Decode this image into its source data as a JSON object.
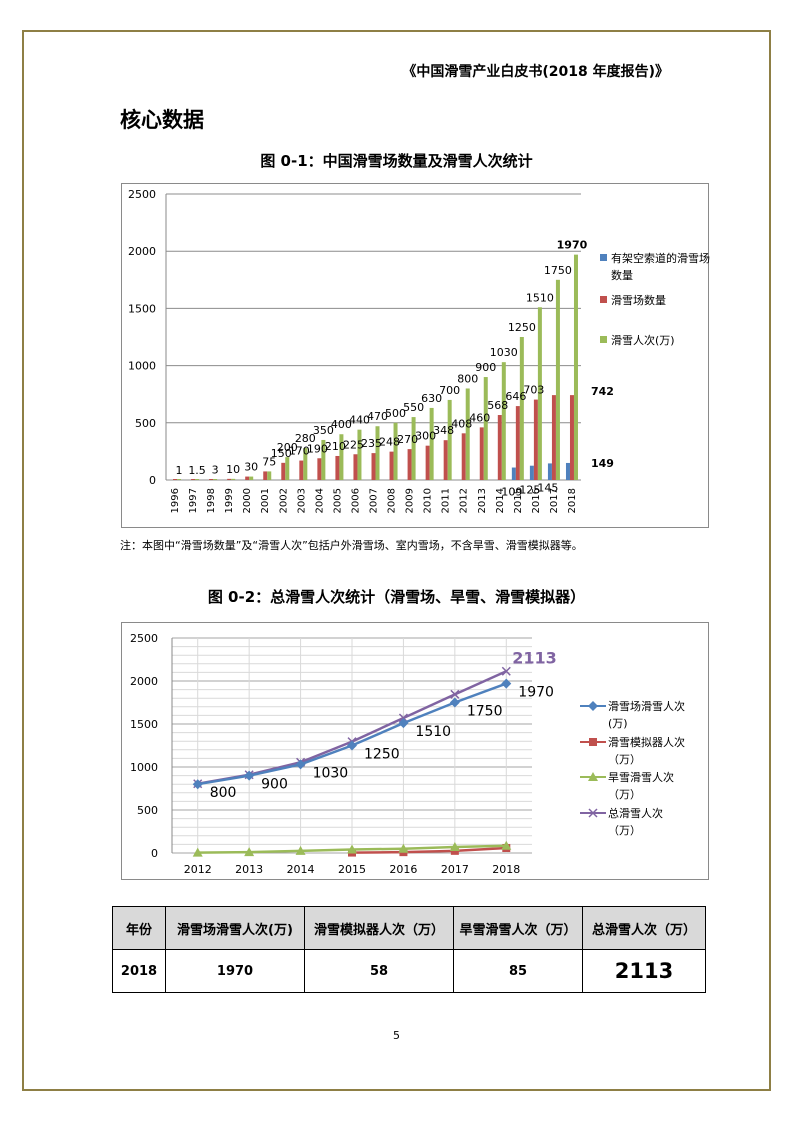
{
  "header": {
    "title": "《中国滑雪产业白皮书(2018 年度报告)》"
  },
  "section": {
    "title": "核心数据"
  },
  "figure1": {
    "title": "图 0-1：中国滑雪场数量及滑雪人次统计",
    "note": "注：本图中“滑雪场数量”及“滑雪人次”包括户外滑雪场、室内雪场，不含旱雪、滑雪模拟器等。"
  },
  "figure2": {
    "title": "图 0-2：总滑雪人次统计（滑雪场、旱雪、滑雪模拟器）"
  },
  "table": {
    "headers": [
      "年份",
      "滑雪场滑雪人次(万)",
      "滑雪模拟器人次（万）",
      "旱雪滑雪人次（万）",
      "总滑雪人次（万）"
    ],
    "row": [
      "2018",
      "1970",
      "58",
      "85",
      "2113"
    ]
  },
  "page_number": "5",
  "colors": {
    "frame": "#8e7f45",
    "bar_blue": "#4f81bd",
    "bar_red": "#c0504d",
    "bar_green": "#9bbb59",
    "line_purple": "#8064a2",
    "table_header_bg": "#d9d9d9"
  },
  "chart_data": [
    {
      "type": "bar",
      "title": "图 0-1：中国滑雪场数量及滑雪人次统计",
      "categories": [
        "1996",
        "1997",
        "1998",
        "1999",
        "2000",
        "2001",
        "2002",
        "2003",
        "2004",
        "2005",
        "2006",
        "2007",
        "2008",
        "2009",
        "2010",
        "2011",
        "2012",
        "2013",
        "2014",
        "2015",
        "2016",
        "2017",
        "2018"
      ],
      "ylim": [
        0,
        2500
      ],
      "yticks": [
        "0",
        "500",
        "1000",
        "1500",
        "2000",
        "2500"
      ],
      "grid": true,
      "legend_position": "right",
      "series": [
        {
          "name": "有架空索道的滑雪场数量",
          "color": "#4f81bd",
          "values": [
            null,
            null,
            null,
            null,
            null,
            null,
            null,
            null,
            null,
            null,
            null,
            null,
            null,
            null,
            null,
            null,
            null,
            null,
            null,
            109,
            125,
            145,
            149
          ],
          "labels": [
            "",
            "",
            "",
            "",
            "",
            "",
            "",
            "",
            "",
            "",
            "",
            "",
            "",
            "",
            "",
            "",
            "",
            "",
            "",
            "109",
            "125",
            "145",
            "149"
          ]
        },
        {
          "name": "滑雪场数量",
          "color": "#c0504d",
          "values": [
            1,
            1.5,
            3,
            10,
            30,
            75,
            150,
            170,
            190,
            210,
            225,
            235,
            248,
            270,
            300,
            348,
            408,
            460,
            568,
            646,
            703,
            742,
            742
          ],
          "labels": [
            "",
            "",
            "",
            "",
            "",
            "",
            "150",
            "170",
            "190",
            "210",
            "225",
            "235",
            "248",
            "270",
            "300",
            "348",
            "408",
            "460",
            "568",
            "646",
            "703",
            "",
            "742"
          ]
        },
        {
          "name": "滑雪人次(万)",
          "color": "#9bbb59",
          "values": [
            1,
            1.5,
            3,
            10,
            30,
            75,
            200,
            280,
            350,
            400,
            440,
            470,
            500,
            550,
            630,
            700,
            800,
            900,
            1030,
            1250,
            1510,
            1750,
            1970
          ],
          "labels": [
            "1",
            "1.5",
            "3",
            "10",
            "30",
            "75",
            "200",
            "280",
            "350",
            "400",
            "440",
            "470",
            "500",
            "550",
            "630",
            "700",
            "800",
            "900",
            "1030",
            "1250",
            "1510",
            "1750",
            "1970"
          ]
        }
      ]
    },
    {
      "type": "line",
      "title": "图 0-2：总滑雪人次统计（滑雪场、旱雪、滑雪模拟器）",
      "x": [
        "2012",
        "2013",
        "2014",
        "2015",
        "2016",
        "2017",
        "2018"
      ],
      "ylim": [
        0,
        2500
      ],
      "yticks": [
        "0",
        "500",
        "1000",
        "1500",
        "2000",
        "2500"
      ],
      "grid": true,
      "legend_position": "right",
      "series": [
        {
          "name": "滑雪场滑雪人次(万)",
          "color": "#4f81bd",
          "marker": "diamond",
          "values": [
            800,
            900,
            1030,
            1250,
            1510,
            1750,
            1970
          ],
          "labels": [
            "800",
            "900",
            "1030",
            "1250",
            "1510",
            "1750",
            "1970"
          ]
        },
        {
          "name": "滑雪模拟器人次（万）",
          "color": "#c0504d",
          "marker": "square",
          "values": [
            null,
            null,
            null,
            5,
            10,
            25,
            58
          ]
        },
        {
          "name": "旱雪滑雪人次（万）",
          "color": "#9bbb59",
          "marker": "triangle",
          "values": [
            5,
            10,
            25,
            40,
            50,
            70,
            85
          ]
        },
        {
          "name": "总滑雪人次（万）",
          "color": "#8064a2",
          "marker": "x",
          "values": [
            805,
            910,
            1055,
            1295,
            1570,
            1845,
            2113
          ],
          "labels": [
            "",
            "",
            "",
            "",
            "",
            "",
            "2113"
          ]
        }
      ]
    }
  ]
}
